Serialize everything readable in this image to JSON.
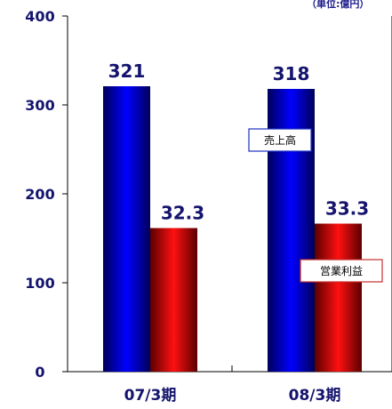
{
  "unit_label": "（単位:億円）",
  "legend": {
    "sales": "売上高",
    "profit": "営業利益"
  },
  "colors": {
    "sales": "#0000d8",
    "profit": "#e00000",
    "sales_legend_border": "#1f2fbf",
    "profit_legend_border": "#c83030"
  },
  "chart_data": {
    "type": "bar",
    "categories": [
      "07/3期",
      "08/3期"
    ],
    "series": [
      {
        "name": "売上高",
        "values": [
          321,
          318
        ],
        "labels": [
          "321",
          "318"
        ]
      },
      {
        "name": "営業利益",
        "values": [
          32.3,
          33.3
        ],
        "labels": [
          "32.3",
          "33.3"
        ],
        "plotted_scaled_heights": [
          161.5,
          166.5
        ]
      }
    ],
    "ylim": [
      0,
      400
    ],
    "yticks": [
      "0",
      "100",
      "200",
      "300",
      "400"
    ],
    "grid": false,
    "legend_placement": "inline-labels"
  }
}
